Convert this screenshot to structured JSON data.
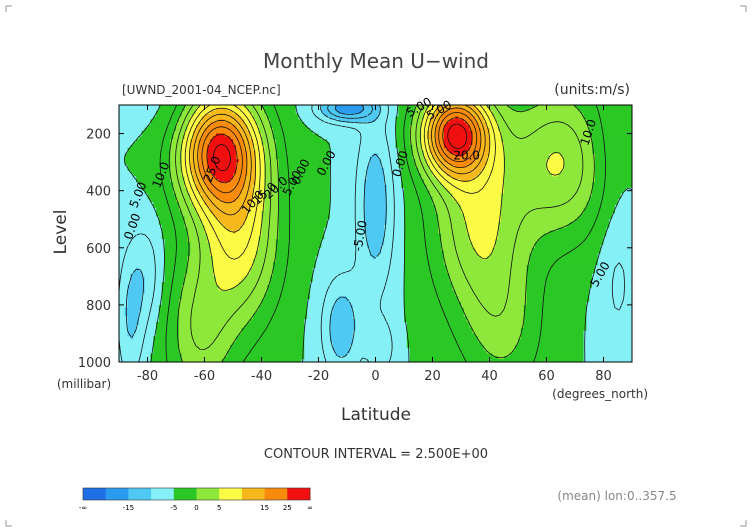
{
  "chart_data": {
    "type": "heatmap",
    "title": "Monthly Mean U−wind",
    "file_label": "[UWND_2001-04_NCEP.nc]",
    "units_label": "(units:m/s)",
    "xlabel": "Latitude",
    "x_units": "(degrees_north)",
    "ylabel": "Level",
    "y_units": "(millibar)",
    "xlim": [
      -90,
      90
    ],
    "ylim": [
      1000,
      100
    ],
    "x_ticks": [
      -80,
      -60,
      -40,
      -20,
      0,
      20,
      40,
      60,
      80
    ],
    "y_ticks": [
      200,
      400,
      600,
      800,
      1000
    ],
    "contour_interval_text": "CONTOUR INTERVAL = 2.500E+00",
    "footer_text": "(mean) lon:0..357.5",
    "colorbar": {
      "colors": [
        "#1f6fe6",
        "#2b9bf0",
        "#4fc9f4",
        "#86f0f7",
        "#2bc825",
        "#8ee83c",
        "#fbfb46",
        "#f7b81d",
        "#f88a0c",
        "#f10f0f"
      ],
      "tick_labels": [
        "-∞",
        "-15",
        "-5",
        "0",
        "5",
        "15",
        "25",
        "∞"
      ]
    },
    "features": [
      {
        "kind": "jet_max",
        "hemisphere": "south",
        "lat": -55,
        "level": 250,
        "value_label": "25.0"
      },
      {
        "kind": "jet_max",
        "hemisphere": "north",
        "lat": 28,
        "level": 200,
        "value_label": "25.0"
      },
      {
        "kind": "easterlies",
        "lat": 0,
        "level": 450,
        "value_label": "-5.00"
      }
    ],
    "contour_labels": [
      "10.0",
      "5.00",
      "0.00",
      "25.0",
      "20.0",
      "15.0",
      "10.0",
      "5.00",
      "0.00",
      "0.00",
      "-5.00",
      "5.00",
      "5.00",
      "20.0",
      "0.00",
      "10.0",
      "5.00"
    ]
  }
}
